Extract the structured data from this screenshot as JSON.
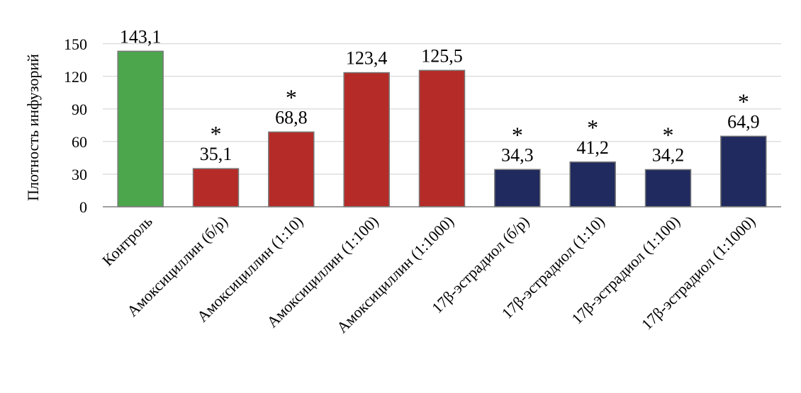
{
  "chart_data": {
    "type": "bar",
    "ylabel": "Плотность инфузорий",
    "xlabel": "",
    "ylim": [
      0,
      160
    ],
    "yticks": [
      0,
      30,
      60,
      90,
      120,
      150
    ],
    "grid": true,
    "categories": [
      "Контроль",
      "Амоксициллин (б/р)",
      "Амоксициллин (1:10)",
      "Амоксициллин (1:100)",
      "Амоксициллин (1:1000)",
      "17β-эстрадиол (б/р)",
      "17β-эстрадиол (1:10)",
      "17β-эстрадиол (1:100)",
      "17β-эстрадиол (1:1000)"
    ],
    "values": [
      143.1,
      35.1,
      68.8,
      123.4,
      125.5,
      34.3,
      41.2,
      34.2,
      64.9
    ],
    "value_labels": [
      "143,1",
      "35,1",
      "68,8",
      "123,4",
      "125,5",
      "34,3",
      "41,2",
      "34,2",
      "64,9"
    ],
    "significance_marks": [
      "",
      "*",
      "*",
      "",
      "",
      "*",
      "*",
      "*",
      "*"
    ],
    "bar_colors": [
      "#4ca64c",
      "#b52b27",
      "#b52b27",
      "#b52b27",
      "#b52b27",
      "#202a5e",
      "#202a5e",
      "#202a5e",
      "#202a5e"
    ]
  }
}
